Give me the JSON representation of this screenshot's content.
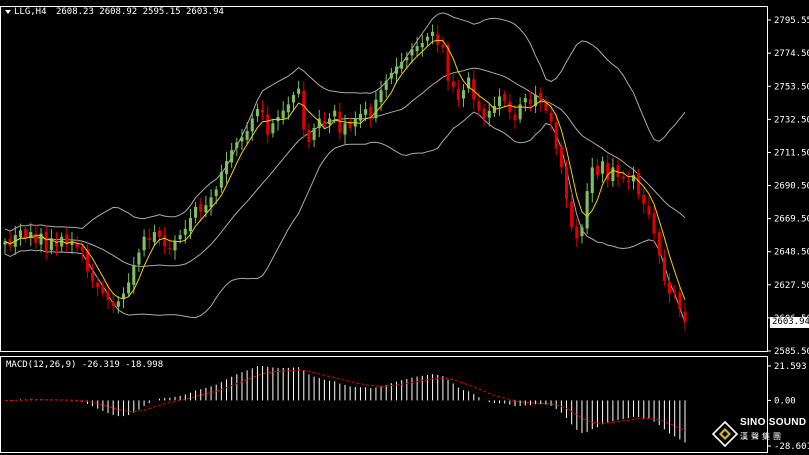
{
  "main_panel": {
    "symbol_header": "LLG,H4",
    "ohlc_header": "2608.23 2608.92 2595.15 2603.94",
    "current_price_label": "2603.94",
    "y_ticks": [
      "2795.55",
      "2774.50",
      "2753.50",
      "2732.50",
      "2711.50",
      "2690.50",
      "2669.50",
      "2648.50",
      "2627.50",
      "2606.50",
      "2585.50"
    ]
  },
  "macd_panel": {
    "header": "MACD(12,26,9) -26.319 -18.998",
    "y_ticks": [
      "21.593",
      "0.00",
      "-28.601"
    ]
  },
  "logo": {
    "name": "SINO SOUND",
    "subtitle": "漢聲集團"
  },
  "colors": {
    "background": "#000000",
    "bull_candle": "#7fbf5f",
    "bear_candle": "#e00000",
    "ma_line": "#f0d000",
    "bands": "#aaaaaa",
    "macd_hist": "#ffffff",
    "signal_line": "#e00000",
    "axis": "#ffffff"
  },
  "chart_data": [
    {
      "type": "candlestick",
      "title": "LLG,H4",
      "indicators": [
        "Bollinger Bands",
        "Moving Average"
      ],
      "ylim": [
        2585.5,
        2795.55
      ],
      "close_path": [
        2655,
        2652,
        2659,
        2662,
        2657,
        2661,
        2654,
        2660,
        2649,
        2657,
        2652,
        2658,
        2653,
        2655,
        2651,
        2649,
        2636,
        2630,
        2626,
        2622,
        2618,
        2614,
        2617,
        2622,
        2629,
        2640,
        2648,
        2658,
        2656,
        2661,
        2658,
        2652,
        2650,
        2655,
        2659,
        2663,
        2670,
        2677,
        2674,
        2678,
        2683,
        2688,
        2699,
        2706,
        2713,
        2718,
        2721,
        2725,
        2733,
        2739,
        2737,
        2723,
        2730,
        2734,
        2738,
        2742,
        2748,
        2752,
        2726,
        2718,
        2727,
        2733,
        2729,
        2733,
        2738,
        2724,
        2730,
        2727,
        2733,
        2736,
        2739,
        2733,
        2745,
        2751,
        2757,
        2762,
        2766,
        2769,
        2772,
        2777,
        2779,
        2781,
        2785,
        2788,
        2780,
        2778,
        2757,
        2753,
        2745,
        2751,
        2759,
        2745,
        2738,
        2733,
        2738,
        2741,
        2747,
        2744,
        2737,
        2732,
        2742,
        2746,
        2742,
        2748,
        2743,
        2738,
        2731,
        2714,
        2702,
        2682,
        2664,
        2657,
        2664,
        2687,
        2702,
        2697,
        2706,
        2694,
        2702,
        2696,
        2695,
        2693,
        2697,
        2685,
        2679,
        2672,
        2660,
        2646,
        2630,
        2622,
        2622,
        2612,
        2604
      ],
      "y_ticks": [
        2795.55,
        2774.5,
        2753.5,
        2732.5,
        2711.5,
        2690.5,
        2669.5,
        2648.5,
        2627.5,
        2606.5,
        2585.5
      ],
      "last_close": 2603.94
    },
    {
      "type": "bar",
      "title": "MACD(12,26,9)",
      "ylim": [
        -28.601,
        21.593
      ],
      "values": {
        "macd": -26.319,
        "signal": -18.998
      }
    }
  ]
}
